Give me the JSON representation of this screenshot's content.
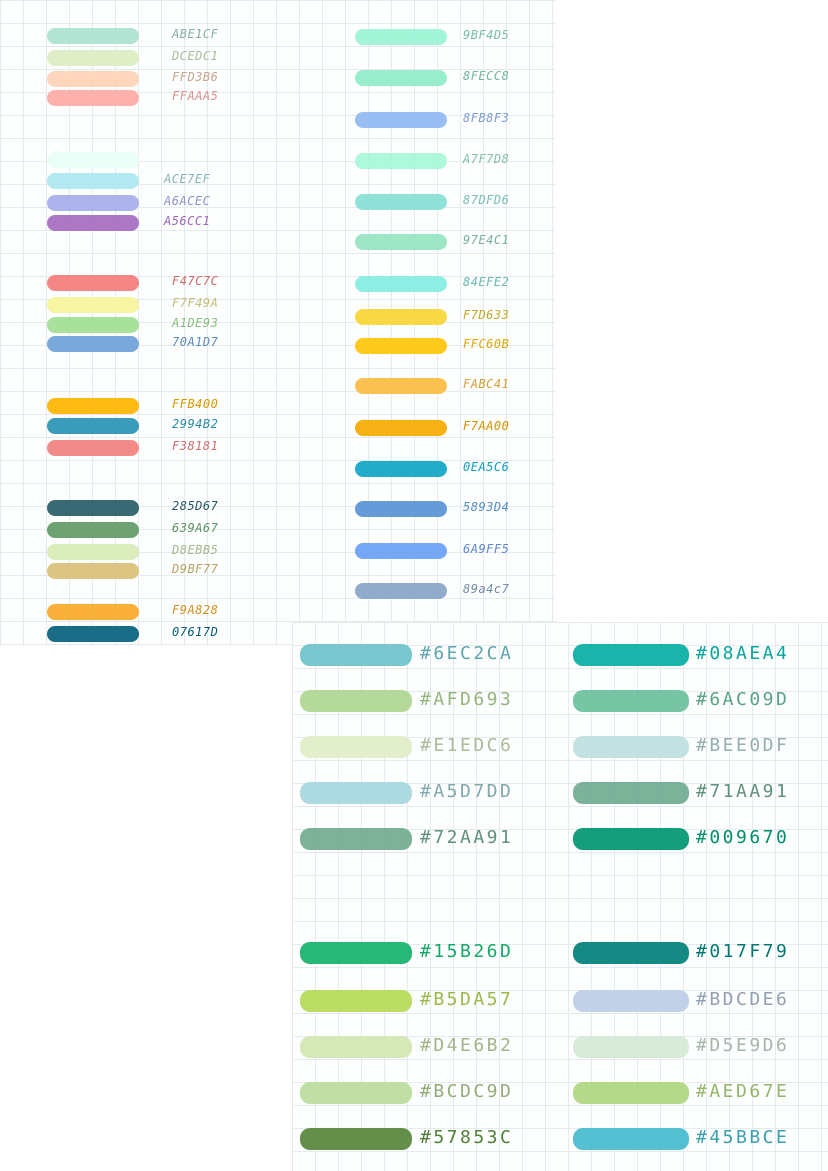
{
  "sheet_1": {
    "left_column": [
      {
        "label": "ABE1CF",
        "color": "#ABE1CF"
      },
      {
        "label": "DCEDC1",
        "color": "#DCEDC1"
      },
      {
        "label": "FFD3B6",
        "color": "#FFD3B6"
      },
      {
        "label": "FFAAA5",
        "color": "#FFAAA5"
      },
      {
        "label": "",
        "color": "#E8FFF7"
      },
      {
        "label": "ACE7EF",
        "color": "#ACE7EF"
      },
      {
        "label": "A6ACEC",
        "color": "#A6ACEC"
      },
      {
        "label": "A56CC1",
        "color": "#A56CC1"
      },
      {
        "label": "F47C7C",
        "color": "#F47C7C"
      },
      {
        "label": "F7F49A",
        "color": "#F7F49A"
      },
      {
        "label": "A1DE93",
        "color": "#A1DE93"
      },
      {
        "label": "70A1D7",
        "color": "#70A1D7"
      },
      {
        "label": "FFB400",
        "color": "#FFB400"
      },
      {
        "label": "2994B2",
        "color": "#2994B2"
      },
      {
        "label": "F38181",
        "color": "#F38181"
      },
      {
        "label": "285D67",
        "color": "#285D67"
      },
      {
        "label": "639A67",
        "color": "#639A67"
      },
      {
        "label": "D8EBB5",
        "color": "#D8EBB5"
      },
      {
        "label": "D9BF77",
        "color": "#D9BF77"
      },
      {
        "label": "F9A828",
        "color": "#F9A828"
      },
      {
        "label": "07617D",
        "color": "#07617D"
      }
    ],
    "right_column": [
      {
        "label": "9BF4D5",
        "color": "#9BF4D5"
      },
      {
        "label": "8FECC8",
        "color": "#8FECC8"
      },
      {
        "label": "8FB8F3",
        "color": "#8FB8F3"
      },
      {
        "label": "A7F7D8",
        "color": "#A7F7D8"
      },
      {
        "label": "87DFD6",
        "color": "#87DFD6"
      },
      {
        "label": "97E4C1",
        "color": "#97E4C1"
      },
      {
        "label": "84EFE2",
        "color": "#84EFE2"
      },
      {
        "label": "F7D633",
        "color": "#F7D633"
      },
      {
        "label": "FFC60B",
        "color": "#FFC60B"
      },
      {
        "label": "FABC41",
        "color": "#FABC41"
      },
      {
        "label": "F7AA00",
        "color": "#F7AA00"
      },
      {
        "label": "0EA5C6",
        "color": "#0EA5C6"
      },
      {
        "label": "5893D4",
        "color": "#5893D4"
      },
      {
        "label": "6A9FF5",
        "color": "#6A9FF5"
      },
      {
        "label": "89a4c7",
        "color": "#89A4C7"
      }
    ]
  },
  "sheet_2": {
    "left_column": [
      {
        "label": "#6EC2CA",
        "color": "#6EC2CA"
      },
      {
        "label": "#AFD693",
        "color": "#AFD693"
      },
      {
        "label": "#E1EDC6",
        "color": "#E1EDC6"
      },
      {
        "label": "#A5D7DD",
        "color": "#A5D7DD"
      },
      {
        "label": "#72AA91",
        "color": "#72AA91"
      },
      {
        "label": "#15B26D",
        "color": "#15B26D"
      },
      {
        "label": "#B5DA57",
        "color": "#B5DA57"
      },
      {
        "label": "#D4E6B2",
        "color": "#D4E6B2"
      },
      {
        "label": "#BCDC9D",
        "color": "#BCDC9D"
      },
      {
        "label": "#57853C",
        "color": "#57853C"
      }
    ],
    "right_column": [
      {
        "label": "#08AEA4",
        "color": "#08AEA4"
      },
      {
        "label": "#6AC09D",
        "color": "#6AC09D"
      },
      {
        "label": "#BEE0DF",
        "color": "#BEE0DF"
      },
      {
        "label": "#71AA91",
        "color": "#71AA91"
      },
      {
        "label": "#009670",
        "color": "#009670"
      },
      {
        "label": "#017F79",
        "color": "#017F79"
      },
      {
        "label": "#BDCDE6",
        "color": "#BDCDE6"
      },
      {
        "label": "#D5E9D6",
        "color": "#D5E9D6"
      },
      {
        "label": "#AED67E",
        "color": "#AED67E"
      },
      {
        "label": "#45BBCE",
        "color": "#45BBCE"
      }
    ]
  }
}
